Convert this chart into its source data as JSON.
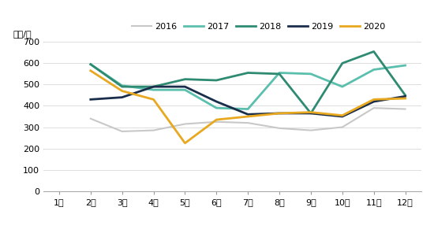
{
  "months": [
    "1月",
    "2月",
    "3月",
    "4月",
    "5月",
    "6月",
    "7月",
    "8月",
    "9月",
    "10月",
    "11月",
    "12月"
  ],
  "series": {
    "2016": [
      null,
      340,
      280,
      285,
      315,
      325,
      320,
      295,
      285,
      300,
      390,
      385
    ],
    "2017": [
      null,
      595,
      495,
      475,
      475,
      390,
      385,
      555,
      550,
      490,
      570,
      590
    ],
    "2018": [
      null,
      595,
      490,
      490,
      525,
      520,
      555,
      550,
      365,
      600,
      655,
      450
    ],
    "2019": [
      null,
      430,
      440,
      490,
      490,
      420,
      360,
      365,
      365,
      350,
      420,
      445
    ],
    "2020": [
      null,
      565,
      470,
      430,
      225,
      335,
      350,
      365,
      370,
      355,
      430,
      435
    ]
  },
  "colors": {
    "2016": "#c8c8c8",
    "2017": "#5bbfad",
    "2018": "#2e8b72",
    "2019": "#1a2d4a",
    "2020": "#e8a820"
  },
  "linewidths": {
    "2016": 1.5,
    "2017": 2.0,
    "2018": 2.0,
    "2019": 2.0,
    "2020": 2.0
  },
  "ylabel": "美元/吨",
  "ylim": [
    0,
    700
  ],
  "yticks": [
    0,
    100,
    200,
    300,
    400,
    500,
    600,
    700
  ],
  "background_color": "#ffffff",
  "legend_order": [
    "2016",
    "2017",
    "2018",
    "2019",
    "2020"
  ]
}
